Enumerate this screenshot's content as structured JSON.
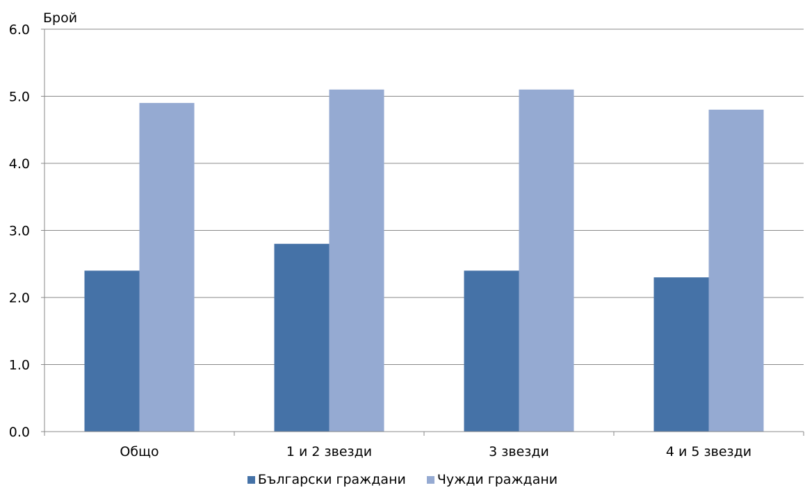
{
  "chart_data": {
    "type": "bar",
    "ylabel": "Брой",
    "categories": [
      "Общо",
      "1 и 2 звезди",
      "3 звезди",
      "4 и 5 звезди"
    ],
    "series": [
      {
        "name": "Български граждани",
        "values": [
          2.4,
          2.8,
          2.4,
          2.3
        ],
        "color": "#4572A7"
      },
      {
        "name": "Чужди граждани",
        "values": [
          4.9,
          5.1,
          5.1,
          4.8
        ],
        "color": "#95AAD2"
      }
    ],
    "ylim": [
      0,
      6
    ],
    "yticks": [
      "0.0",
      "1.0",
      "2.0",
      "3.0",
      "4.0",
      "5.0",
      "6.0"
    ],
    "grid": true,
    "legend_position": "bottom"
  }
}
